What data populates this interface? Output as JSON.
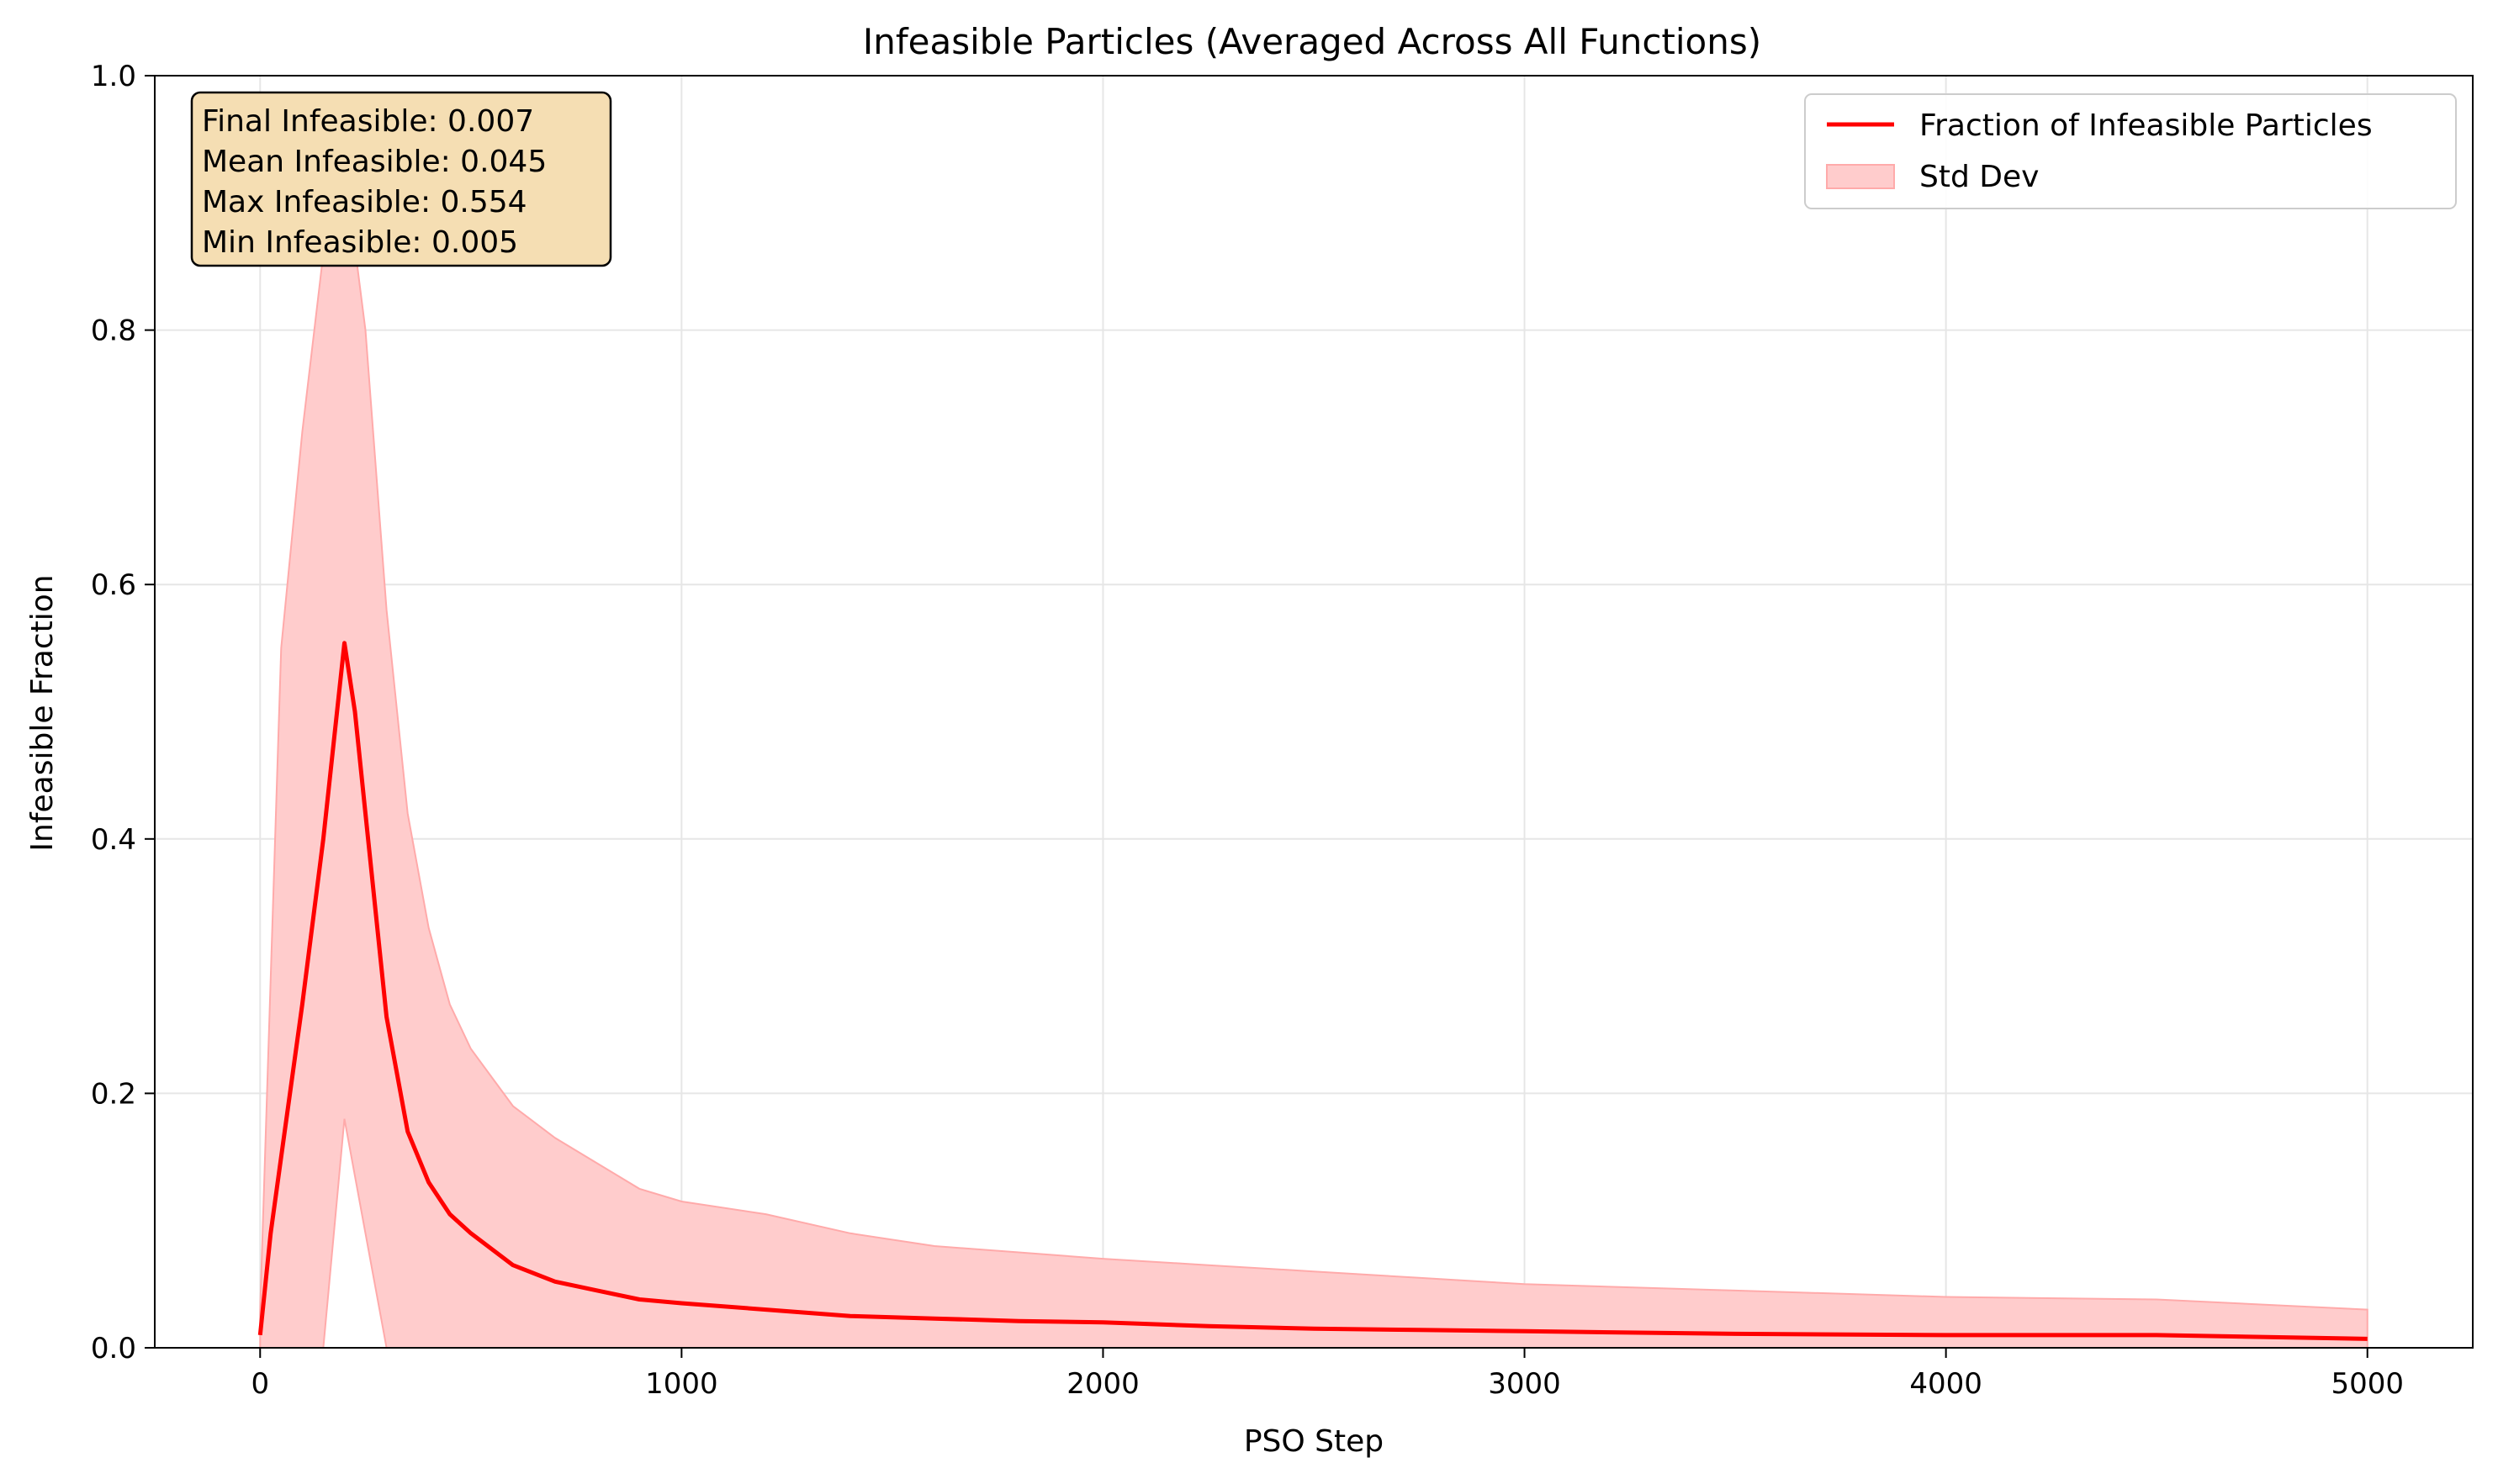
{
  "colors": {
    "line": "#ff0000",
    "band": "#ffcccc",
    "band_edge": "#ffaaaa",
    "stats_box_fill": "#f5deb3",
    "grid": "#e6e6e6"
  },
  "stats_box": {
    "lines": [
      "Final Infeasible: 0.007",
      "Mean Infeasible: 0.045",
      "Max Infeasible: 0.554",
      "Min Infeasible: 0.005"
    ]
  },
  "chart_data": {
    "type": "line",
    "title": "Infeasible Particles (Averaged Across All Functions)",
    "xlabel": "PSO Step",
    "ylabel": "Infeasible Fraction",
    "xlim": [
      -250,
      5250
    ],
    "ylim": [
      0,
      1.0
    ],
    "xticks": [
      0,
      1000,
      2000,
      3000,
      4000,
      5000
    ],
    "xtick_labels": [
      "0",
      "1000",
      "2000",
      "3000",
      "4000",
      "5000"
    ],
    "yticks": [
      0.0,
      0.2,
      0.4,
      0.6,
      0.8,
      1.0
    ],
    "ytick_labels": [
      "0.0",
      "0.2",
      "0.4",
      "0.6",
      "0.8",
      "1.0"
    ],
    "grid": true,
    "legend_position": "top-right",
    "series": [
      {
        "name": "Fraction of Infeasible Particles",
        "kind": "line",
        "x": [
          0,
          25,
          50,
          100,
          150,
          200,
          225,
          250,
          300,
          350,
          400,
          450,
          500,
          600,
          700,
          800,
          900,
          1000,
          1200,
          1400,
          1600,
          1800,
          2000,
          2250,
          2500,
          2750,
          3000,
          3500,
          4000,
          4500,
          5000
        ],
        "y": [
          0.01,
          0.09,
          0.15,
          0.27,
          0.4,
          0.554,
          0.5,
          0.42,
          0.26,
          0.17,
          0.13,
          0.105,
          0.09,
          0.065,
          0.052,
          0.045,
          0.038,
          0.035,
          0.03,
          0.025,
          0.023,
          0.021,
          0.02,
          0.017,
          0.015,
          0.014,
          0.013,
          0.011,
          0.01,
          0.01,
          0.007
        ]
      },
      {
        "name": "Std Dev",
        "kind": "band",
        "x": [
          0,
          50,
          100,
          150,
          200,
          250,
          300,
          350,
          400,
          450,
          500,
          600,
          700,
          800,
          900,
          1000,
          1200,
          1400,
          1600,
          1800,
          2000,
          2250,
          2500,
          2750,
          3000,
          3500,
          4000,
          4500,
          5000
        ],
        "upper": [
          0.03,
          0.55,
          0.72,
          0.86,
          0.93,
          0.8,
          0.58,
          0.42,
          0.33,
          0.27,
          0.235,
          0.19,
          0.165,
          0.145,
          0.125,
          0.115,
          0.105,
          0.09,
          0.08,
          0.075,
          0.07,
          0.065,
          0.06,
          0.055,
          0.05,
          0.045,
          0.04,
          0.038,
          0.03
        ],
        "lower": [
          0.0,
          0.0,
          0.0,
          0.0,
          0.18,
          0.09,
          0.0,
          0.0,
          0.0,
          0.0,
          0.0,
          0.0,
          0.0,
          0.0,
          0.0,
          0.0,
          0.0,
          0.0,
          0.0,
          0.0,
          0.0,
          0.0,
          0.0,
          0.0,
          0.0,
          0.0,
          0.0,
          0.0,
          0.0
        ]
      }
    ]
  }
}
